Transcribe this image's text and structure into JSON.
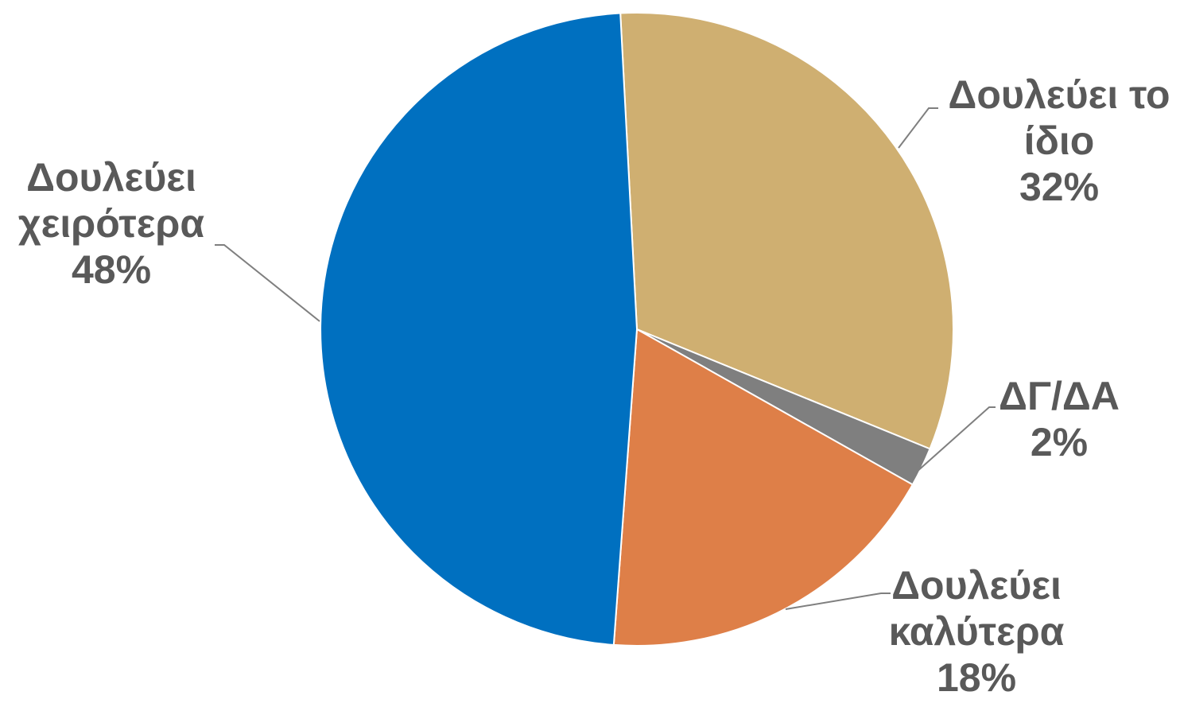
{
  "chart_data": {
    "type": "pie",
    "title": "",
    "slices": [
      {
        "name": "Δουλεύει το ίδιο",
        "label_lines": [
          "Δουλεύει το",
          "ίδιο"
        ],
        "value_label": "32%",
        "value": 32,
        "color": "#cfaf71"
      },
      {
        "name": "ΔΓ/ΔΑ",
        "label_lines": [
          "ΔΓ/ΔΑ"
        ],
        "value_label": "2%",
        "value": 2,
        "color": "#7f7f7f"
      },
      {
        "name": "Δουλεύει καλύτερα",
        "label_lines": [
          "Δουλεύει",
          "καλύτερα"
        ],
        "value_label": "18%",
        "value": 18,
        "color": "#de7f48"
      },
      {
        "name": "Δουλεύει χειρότερα",
        "label_lines": [
          "Δουλεύει",
          "χειρότερα"
        ],
        "value_label": "48%",
        "value": 48,
        "color": "#0070c0"
      }
    ]
  }
}
